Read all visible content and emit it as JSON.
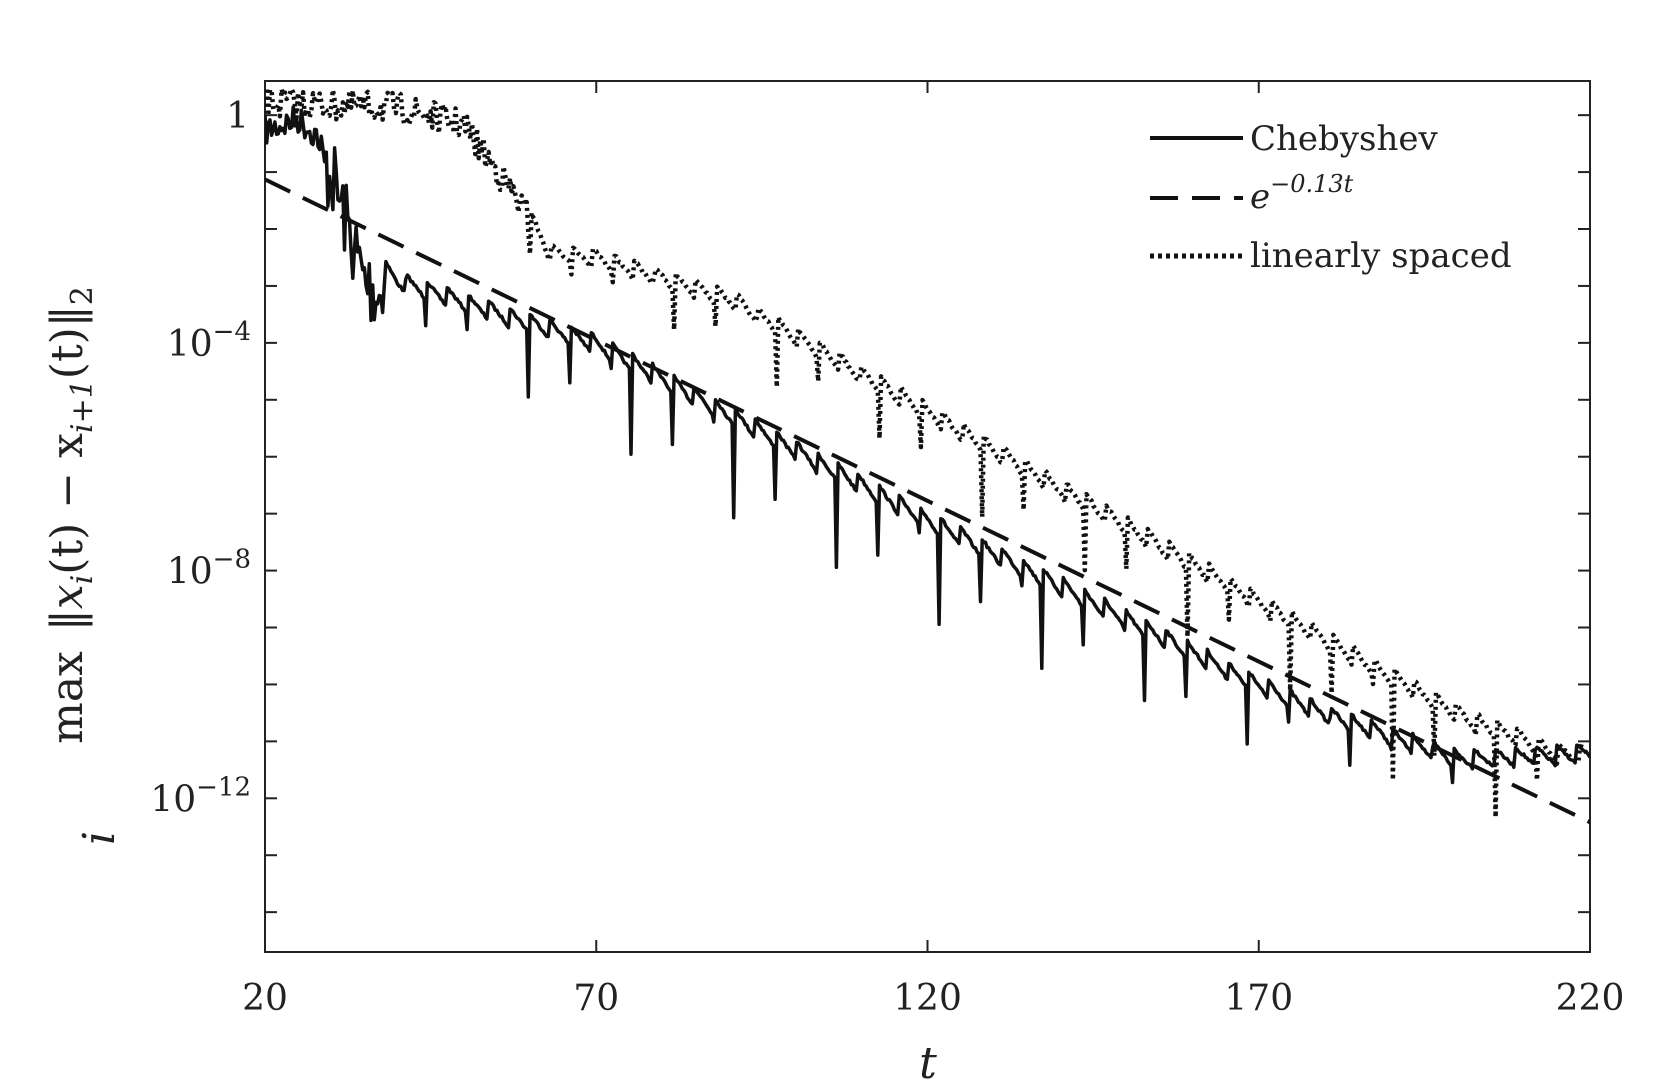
{
  "chart_data": {
    "type": "line",
    "xlabel": "t",
    "ylabel": "max_i ||x_i(t) − x_{i+1}(t)||_2",
    "ylabel_parts": {
      "max": "max",
      "sub": "i",
      "expr": "‖x",
      "i": "i",
      "t1": "(t) − x",
      "ip1": "i+1",
      "t2": "(t)‖",
      "two": "2"
    },
    "y_scale": "log",
    "xlim": [
      20,
      220
    ],
    "ylim_log10": [
      -14.7,
      0.6
    ],
    "x_ticks": [
      20,
      70,
      120,
      170,
      220
    ],
    "x_tick_labels": [
      "20",
      "70",
      "120",
      "170",
      "220"
    ],
    "y_ticks_log10": [
      0,
      -4,
      -8,
      -12
    ],
    "y_tick_labels": [
      {
        "base": "1",
        "exp": ""
      },
      {
        "base": "10",
        "exp": "−4"
      },
      {
        "base": "10",
        "exp": "−8"
      },
      {
        "base": "10",
        "exp": "−12"
      }
    ],
    "grid": false,
    "legend_position": "top-right",
    "colors": {
      "line": "#111111",
      "axis": "#222222"
    },
    "series": [
      {
        "name": "Chebyshev",
        "style": "solid",
        "envelope_log10": [
          [
            20,
            0
          ],
          [
            25,
            0.2
          ],
          [
            30,
            -0.3
          ],
          [
            35,
            -2.2
          ],
          [
            40,
            -2.7
          ],
          [
            70,
            -3.8
          ],
          [
            120,
            -6.9
          ],
          [
            170,
            -9.8
          ],
          [
            180,
            -10.3
          ],
          [
            200,
            -11.1
          ],
          [
            220,
            -11.0
          ]
        ],
        "min_log10": [
          [
            20,
            -0.1
          ],
          [
            35,
            -2.5
          ],
          [
            50,
            -5.0
          ],
          [
            70,
            -6.5
          ],
          [
            100,
            -8.5
          ],
          [
            130,
            -10.5
          ],
          [
            160,
            -11.6
          ],
          [
            170,
            -11.8
          ],
          [
            200,
            -12.0
          ],
          [
            220,
            -11.5
          ]
        ],
        "period": 3.1,
        "dips_start": 38
      },
      {
        "name": "e^{−0.13t}",
        "label_base": "e",
        "label_exp": "−0.13t",
        "style": "dashed",
        "rate": -0.13
      },
      {
        "name": "linearly spaced",
        "style": "dotted",
        "envelope_log10": [
          [
            20,
            0.5
          ],
          [
            40,
            0.4
          ],
          [
            50,
            0.1
          ],
          [
            58,
            -1.2
          ],
          [
            63,
            -2.2
          ],
          [
            70,
            -2.3
          ],
          [
            90,
            -3.0
          ],
          [
            120,
            -5.0
          ],
          [
            150,
            -7.0
          ],
          [
            180,
            -9.0
          ],
          [
            200,
            -10.3
          ],
          [
            215,
            -11.0
          ],
          [
            220,
            -11.0
          ]
        ],
        "min_log10": [
          [
            20,
            0.3
          ],
          [
            50,
            -0.5
          ],
          [
            60,
            -2.5
          ],
          [
            70,
            -3.5
          ],
          [
            100,
            -5.5
          ],
          [
            130,
            -8.0
          ],
          [
            160,
            -10.0
          ],
          [
            180,
            -11.5
          ],
          [
            195,
            -13.0
          ],
          [
            220,
            -13.0
          ]
        ],
        "period": 3.1,
        "dips_start": 60
      }
    ]
  }
}
